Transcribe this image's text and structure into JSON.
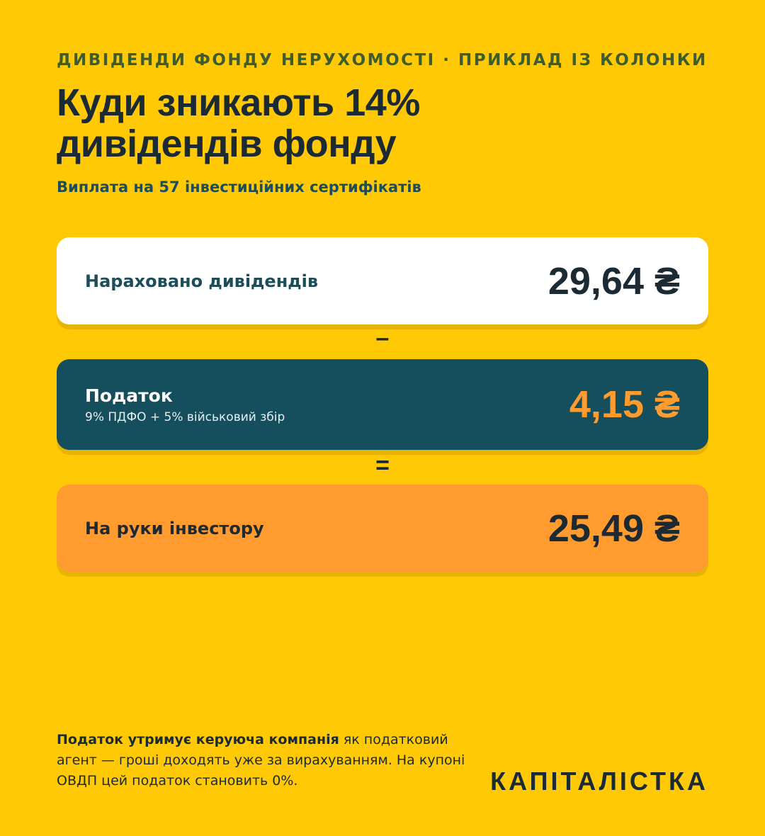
{
  "header": {
    "kicker": "ДИВІДЕНДИ ФОНДУ НЕРУХОМОСТІ · ПРИКЛАД ІЗ КОЛОНКИ",
    "title_line1": "Куди зникають 14%",
    "title_line2": "дивідендів фонду",
    "subtitle": "Виплата на 57 інвестиційних сертифікатів"
  },
  "cards": {
    "accrued": {
      "label": "Нараховано дивідендів",
      "amount": "29,64 ₴"
    },
    "tax": {
      "label": "Податок",
      "note": "9% ПДФО + 5% військовий збір",
      "amount": "4,15 ₴"
    },
    "net": {
      "label": "На руки інвестору",
      "amount": "25,49 ₴"
    }
  },
  "operators": {
    "minus": "–",
    "equals": "="
  },
  "footnote": {
    "bold": "Податок утримує керуюча компанія",
    "rest": " як податковий агент — гроші доходять уже за вирахуванням. На купоні ОВДП цей податок становить 0%."
  },
  "brand": {
    "logo_text": "КАПІТАЛІСТКА"
  },
  "colors": {
    "background": "#FFC905",
    "tax_card": "#154E5D",
    "net_card": "#FF9B2F",
    "text_dark": "#1B2A33"
  }
}
